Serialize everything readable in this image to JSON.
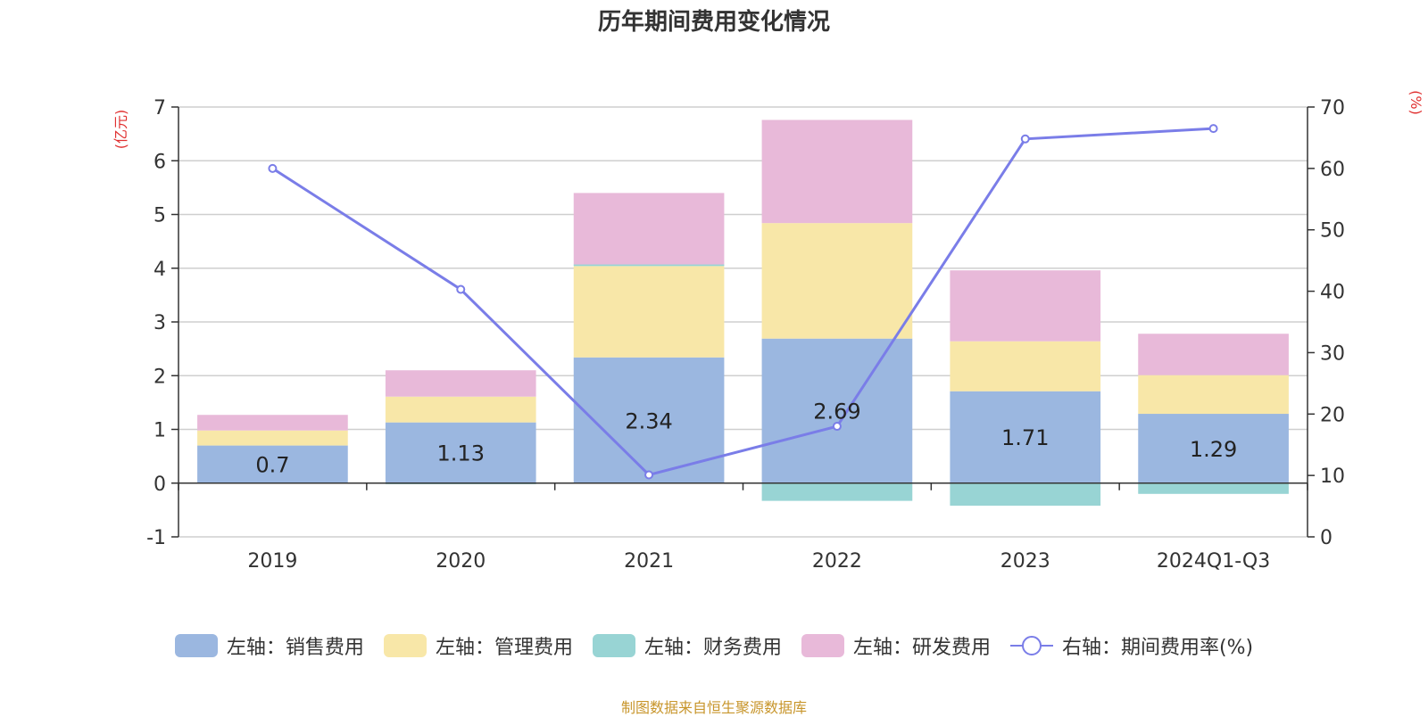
{
  "title": "历年期间费用变化情况",
  "source_note": "制图数据来自恒生聚源数据库",
  "colors": {
    "sales": "#9bb7e0",
    "admin": "#f8e7a8",
    "finance": "#98d4d4",
    "rd": "#e8b9d9",
    "rate": "#7a7de8",
    "axis_unit": "#e03030"
  },
  "chart_data": {
    "type": "bar",
    "stacked": true,
    "categories": [
      "2019",
      "2020",
      "2021",
      "2022",
      "2023",
      "2024Q1-Q3"
    ],
    "y_left": {
      "unit_label": "(亿元)",
      "ylim": [
        -1,
        7
      ],
      "ticks": [
        -1,
        0,
        1,
        2,
        3,
        4,
        5,
        6,
        7
      ]
    },
    "y_right": {
      "unit_label": "(%)",
      "ylim": [
        0,
        70
      ],
      "ticks": [
        0,
        10,
        20,
        30,
        40,
        50,
        60,
        70
      ]
    },
    "grid": true,
    "legend_position": "bottom",
    "series": [
      {
        "key": "sales",
        "name": "左轴：销售费用",
        "axis": "left",
        "values": [
          0.7,
          1.13,
          2.34,
          2.69,
          1.71,
          1.29
        ],
        "data_labels": [
          "0.7",
          "1.13",
          "2.34",
          "2.69",
          "1.71",
          "1.29"
        ]
      },
      {
        "key": "admin",
        "name": "左轴：管理费用",
        "axis": "left",
        "values": [
          0.28,
          0.48,
          1.7,
          2.15,
          0.93,
          0.72
        ]
      },
      {
        "key": "finance",
        "name": "左轴：财务费用",
        "axis": "left",
        "values": [
          0.0,
          -0.02,
          0.03,
          -0.33,
          -0.42,
          -0.2
        ]
      },
      {
        "key": "rd",
        "name": "左轴：研发费用",
        "axis": "left",
        "values": [
          0.29,
          0.49,
          1.33,
          1.92,
          1.32,
          0.77
        ]
      },
      {
        "key": "rate",
        "name": "右轴：期间费用率(%)",
        "axis": "right",
        "type": "line",
        "values": [
          60.0,
          40.3,
          10.1,
          18.0,
          64.8,
          66.5
        ]
      }
    ]
  }
}
